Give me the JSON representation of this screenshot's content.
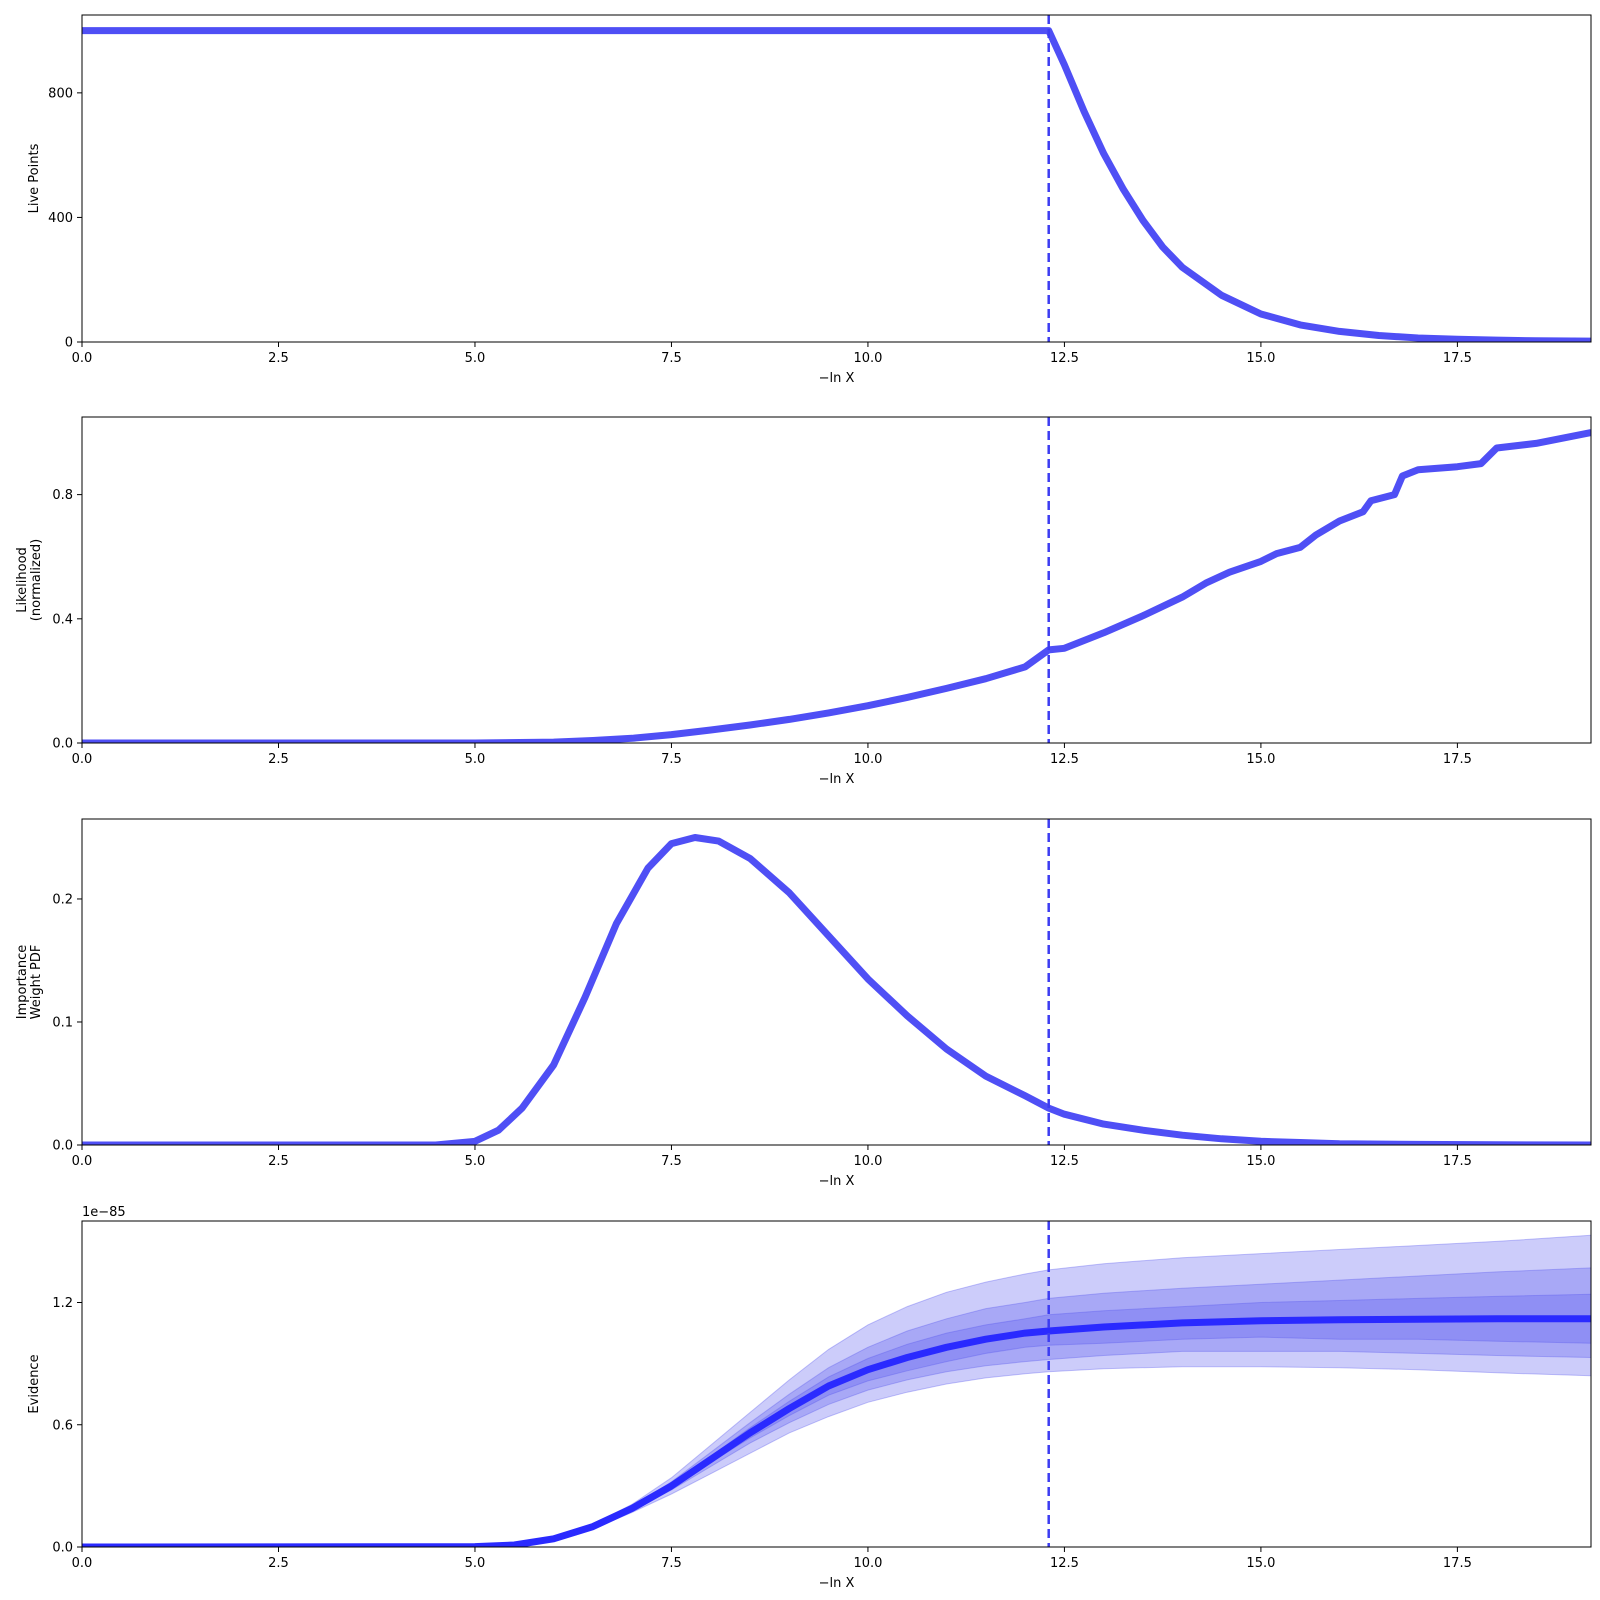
{
  "chart_data": [
    {
      "type": "line",
      "name": "live-points",
      "xlabel": "−ln X",
      "ylabel": "Live Points",
      "xlim": [
        0,
        19.2
      ],
      "ylim": [
        0,
        1050
      ],
      "xticks": [
        0,
        2.5,
        5,
        7.5,
        10,
        12.5,
        15,
        17.5
      ],
      "xtick_labels": [
        "0.0",
        "2.5",
        "5.0",
        "7.5",
        "10.0",
        "12.5",
        "15.0",
        "17.5"
      ],
      "yticks": [
        0,
        400,
        800
      ],
      "ytick_labels": [
        "0",
        "400",
        "800"
      ],
      "vline_x": 12.3,
      "line_color": "#4f4ff5",
      "series": [
        {
          "x": [
            0,
            12.3,
            12.5,
            12.75,
            13.0,
            13.25,
            13.5,
            13.75,
            14.0,
            14.5,
            15.0,
            15.5,
            16.0,
            16.5,
            17.0,
            17.5,
            18.0,
            18.5,
            19.2
          ],
          "values": [
            1000,
            1000,
            890,
            740,
            605,
            490,
            390,
            305,
            240,
            150,
            90,
            55,
            34,
            21,
            13,
            9,
            6,
            4,
            3
          ]
        }
      ]
    },
    {
      "type": "line",
      "name": "likelihood",
      "xlabel": "−ln X",
      "ylabel": "Likelihood\n(normalized)",
      "xlim": [
        0,
        19.2
      ],
      "ylim": [
        0,
        1.05
      ],
      "xticks": [
        0,
        2.5,
        5,
        7.5,
        10,
        12.5,
        15,
        17.5
      ],
      "xtick_labels": [
        "0.0",
        "2.5",
        "5.0",
        "7.5",
        "10.0",
        "12.5",
        "15.0",
        "17.5"
      ],
      "yticks": [
        0,
        0.4,
        0.8
      ],
      "ytick_labels": [
        "0.0",
        "0.4",
        "0.8"
      ],
      "vline_x": 12.3,
      "line_color": "#4f4ff5",
      "series": [
        {
          "x": [
            0,
            5.0,
            6.0,
            6.5,
            7.0,
            7.5,
            8.0,
            8.5,
            9.0,
            9.5,
            10.0,
            10.5,
            11.0,
            11.5,
            12.0,
            12.3,
            12.5,
            13.0,
            13.5,
            14.0,
            14.3,
            14.6,
            15.0,
            15.2,
            15.5,
            15.7,
            16.0,
            16.3,
            16.4,
            16.7,
            16.8,
            17.0,
            17.5,
            17.8,
            18.0,
            18.5,
            19.2
          ],
          "values": [
            0,
            0,
            0.003,
            0.008,
            0.015,
            0.027,
            0.042,
            0.058,
            0.076,
            0.097,
            0.12,
            0.147,
            0.176,
            0.207,
            0.245,
            0.3,
            0.305,
            0.355,
            0.41,
            0.47,
            0.515,
            0.55,
            0.585,
            0.61,
            0.63,
            0.67,
            0.715,
            0.745,
            0.78,
            0.8,
            0.86,
            0.88,
            0.89,
            0.9,
            0.95,
            0.965,
            1.0
          ]
        }
      ]
    },
    {
      "type": "line",
      "name": "importance-weight",
      "xlabel": "−ln X",
      "ylabel": "Importance\nWeight PDF",
      "xlim": [
        0,
        19.2
      ],
      "ylim": [
        0,
        0.265
      ],
      "xticks": [
        0,
        2.5,
        5,
        7.5,
        10,
        12.5,
        15,
        17.5
      ],
      "xtick_labels": [
        "0.0",
        "2.5",
        "5.0",
        "7.5",
        "10.0",
        "12.5",
        "15.0",
        "17.5"
      ],
      "yticks": [
        0,
        0.1,
        0.2
      ],
      "ytick_labels": [
        "0.0",
        "0.1",
        "0.2"
      ],
      "vline_x": 12.3,
      "line_color": "#4f4ff5",
      "series": [
        {
          "x": [
            0,
            4.5,
            5.0,
            5.3,
            5.6,
            6.0,
            6.4,
            6.8,
            7.2,
            7.5,
            7.8,
            8.1,
            8.5,
            9.0,
            9.5,
            10.0,
            10.5,
            11.0,
            11.5,
            12.0,
            12.3,
            12.5,
            13.0,
            13.5,
            14.0,
            14.5,
            15.0,
            15.5,
            16.0,
            17.0,
            18.0,
            19.2
          ],
          "values": [
            0,
            0,
            0.003,
            0.012,
            0.03,
            0.065,
            0.12,
            0.18,
            0.225,
            0.245,
            0.25,
            0.247,
            0.233,
            0.205,
            0.17,
            0.135,
            0.105,
            0.078,
            0.056,
            0.04,
            0.03,
            0.025,
            0.017,
            0.012,
            0.008,
            0.005,
            0.003,
            0.002,
            0.001,
            0.0005,
            0.0002,
            0
          ]
        }
      ]
    },
    {
      "type": "area",
      "name": "evidence",
      "xlabel": "−ln X",
      "ylabel": "Evidence",
      "offset_label": "1e−85",
      "xlim": [
        0,
        19.2
      ],
      "ylim": [
        0,
        1.6
      ],
      "xticks": [
        0,
        2.5,
        5,
        7.5,
        10,
        12.5,
        15,
        17.5
      ],
      "xtick_labels": [
        "0.0",
        "2.5",
        "5.0",
        "7.5",
        "10.0",
        "12.5",
        "15.0",
        "17.5"
      ],
      "yticks": [
        0,
        0.6,
        1.2
      ],
      "ytick_labels": [
        "0.0",
        "0.6",
        "1.2"
      ],
      "vline_x": 12.3,
      "line_color": "#2a2aff",
      "band_color": "#5555ee",
      "x": [
        0,
        5,
        5.5,
        6,
        6.5,
        7,
        7.5,
        8,
        8.5,
        9,
        9.5,
        10,
        10.5,
        11,
        11.5,
        12,
        12.3,
        13,
        14,
        15,
        16,
        17,
        18,
        19.2
      ],
      "mean": [
        0,
        0.002,
        0.01,
        0.04,
        0.1,
        0.19,
        0.3,
        0.43,
        0.56,
        0.68,
        0.79,
        0.87,
        0.93,
        0.98,
        1.02,
        1.05,
        1.06,
        1.08,
        1.1,
        1.11,
        1.115,
        1.118,
        1.12,
        1.12
      ],
      "bands": [
        {
          "upper": [
            0,
            0.002,
            0.011,
            0.045,
            0.11,
            0.21,
            0.34,
            0.5,
            0.66,
            0.82,
            0.97,
            1.09,
            1.18,
            1.25,
            1.3,
            1.34,
            1.36,
            1.39,
            1.42,
            1.44,
            1.46,
            1.48,
            1.5,
            1.53
          ],
          "lower": [
            0,
            0.002,
            0.009,
            0.035,
            0.09,
            0.17,
            0.26,
            0.36,
            0.46,
            0.56,
            0.64,
            0.71,
            0.76,
            0.8,
            0.83,
            0.85,
            0.86,
            0.875,
            0.885,
            0.885,
            0.88,
            0.87,
            0.855,
            0.84
          ]
        },
        {
          "upper": [
            0,
            0.002,
            0.0105,
            0.043,
            0.105,
            0.2,
            0.32,
            0.465,
            0.61,
            0.75,
            0.88,
            0.98,
            1.06,
            1.12,
            1.17,
            1.2,
            1.22,
            1.245,
            1.27,
            1.29,
            1.31,
            1.33,
            1.35,
            1.37
          ],
          "lower": [
            0,
            0.002,
            0.0095,
            0.037,
            0.095,
            0.18,
            0.28,
            0.395,
            0.51,
            0.61,
            0.7,
            0.77,
            0.82,
            0.86,
            0.89,
            0.91,
            0.92,
            0.94,
            0.96,
            0.96,
            0.96,
            0.95,
            0.94,
            0.93
          ]
        },
        {
          "upper": [
            0,
            0.002,
            0.0102,
            0.041,
            0.102,
            0.195,
            0.31,
            0.445,
            0.585,
            0.715,
            0.835,
            0.925,
            0.995,
            1.05,
            1.09,
            1.12,
            1.14,
            1.16,
            1.18,
            1.2,
            1.21,
            1.22,
            1.23,
            1.24
          ],
          "lower": [
            0,
            0.002,
            0.0098,
            0.039,
            0.098,
            0.185,
            0.29,
            0.415,
            0.535,
            0.645,
            0.745,
            0.815,
            0.865,
            0.91,
            0.95,
            0.98,
            0.99,
            1.0,
            1.02,
            1.03,
            1.02,
            1.02,
            1.01,
            1.0
          ]
        }
      ]
    }
  ]
}
